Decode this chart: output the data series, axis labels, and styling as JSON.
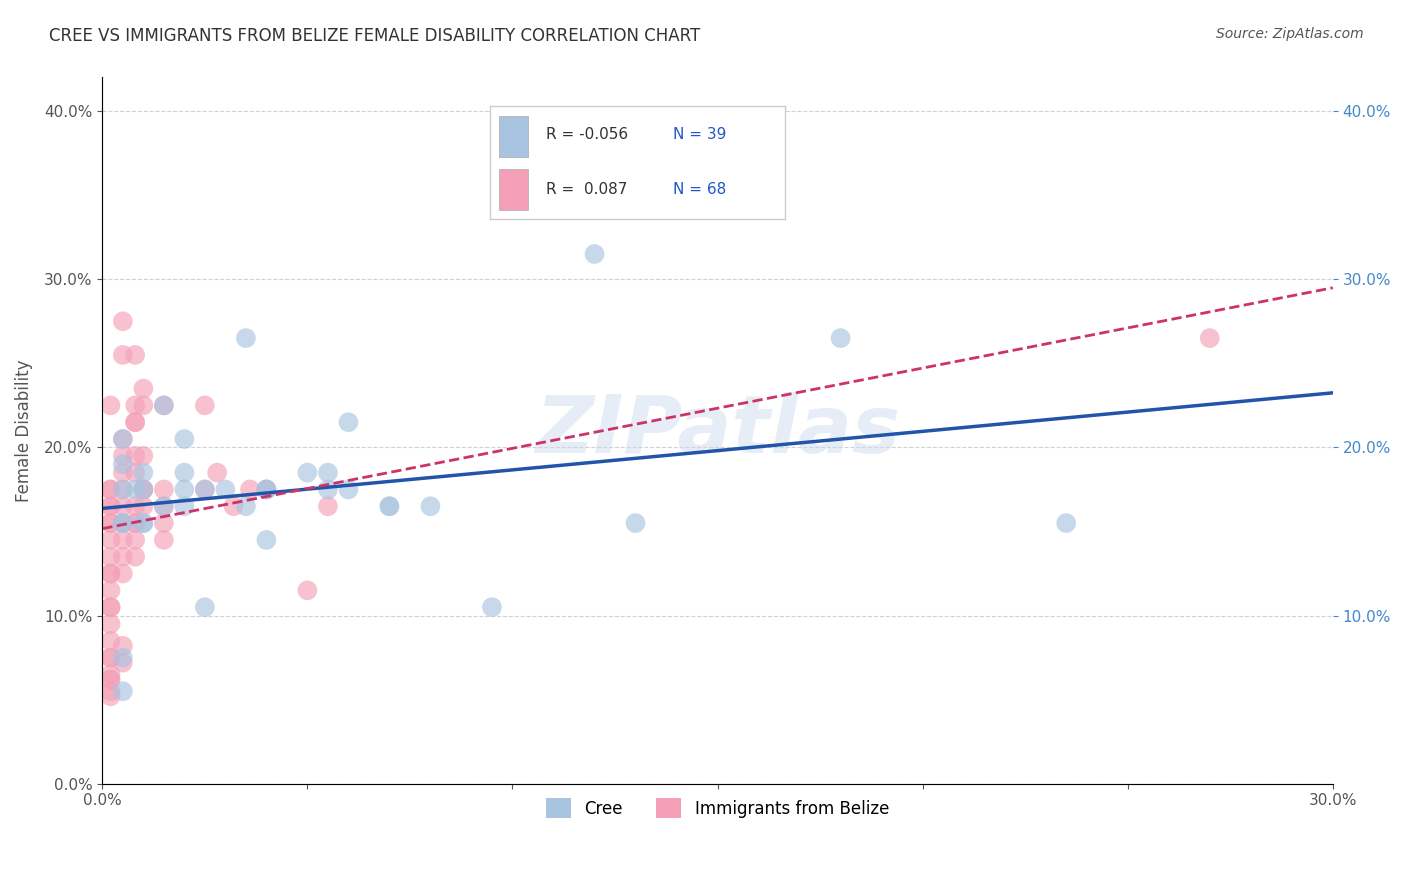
{
  "title": "CREE VS IMMIGRANTS FROM BELIZE FEMALE DISABILITY CORRELATION CHART",
  "source": "Source: ZipAtlas.com",
  "ylabel": "Female Disability",
  "legend_label1": "Cree",
  "legend_label2": "Immigrants from Belize",
  "R1": "-0.056",
  "N1": "39",
  "R2": "0.087",
  "N2": "68",
  "xmin": 0.0,
  "xmax": 0.3,
  "ymin": 0.0,
  "ymax": 0.42,
  "cree_color": "#a8c4e0",
  "belize_color": "#f4a0b8",
  "cree_line_color": "#2255aa",
  "belize_line_color": "#cc3366",
  "bg_color": "#ffffff",
  "grid_color": "#cccccc",
  "cree_x": [
    0.008,
    0.015,
    0.025,
    0.035,
    0.005,
    0.01,
    0.02,
    0.055,
    0.04,
    0.005,
    0.01,
    0.015,
    0.025,
    0.035,
    0.05,
    0.06,
    0.005,
    0.01,
    0.04,
    0.02,
    0.01,
    0.055,
    0.12,
    0.005,
    0.02,
    0.06,
    0.07,
    0.08,
    0.18,
    0.005,
    0.03,
    0.13,
    0.235,
    0.02,
    0.095,
    0.005,
    0.07,
    0.005,
    0.04
  ],
  "cree_y": [
    0.175,
    0.225,
    0.105,
    0.265,
    0.205,
    0.185,
    0.205,
    0.185,
    0.175,
    0.19,
    0.155,
    0.165,
    0.175,
    0.165,
    0.185,
    0.215,
    0.075,
    0.155,
    0.175,
    0.185,
    0.175,
    0.175,
    0.315,
    0.155,
    0.165,
    0.175,
    0.165,
    0.165,
    0.265,
    0.055,
    0.175,
    0.155,
    0.155,
    0.175,
    0.105,
    0.175,
    0.165,
    0.155,
    0.145
  ],
  "belize_x": [
    0.005,
    0.005,
    0.008,
    0.008,
    0.01,
    0.002,
    0.005,
    0.005,
    0.002,
    0.002,
    0.002,
    0.002,
    0.005,
    0.002,
    0.002,
    0.005,
    0.008,
    0.01,
    0.015,
    0.008,
    0.008,
    0.008,
    0.01,
    0.01,
    0.015,
    0.025,
    0.025,
    0.028,
    0.032,
    0.036,
    0.04,
    0.002,
    0.002,
    0.002,
    0.002,
    0.002,
    0.002,
    0.002,
    0.002,
    0.005,
    0.005,
    0.005,
    0.005,
    0.005,
    0.005,
    0.008,
    0.008,
    0.008,
    0.008,
    0.01,
    0.01,
    0.015,
    0.05,
    0.055,
    0.002,
    0.002,
    0.002,
    0.002,
    0.002,
    0.005,
    0.005,
    0.008,
    0.015,
    0.015,
    0.002,
    0.002,
    0.002,
    0.27
  ],
  "belize_y": [
    0.255,
    0.275,
    0.255,
    0.225,
    0.225,
    0.225,
    0.205,
    0.195,
    0.175,
    0.175,
    0.165,
    0.155,
    0.175,
    0.165,
    0.155,
    0.185,
    0.215,
    0.235,
    0.225,
    0.215,
    0.195,
    0.185,
    0.175,
    0.195,
    0.165,
    0.175,
    0.225,
    0.185,
    0.165,
    0.175,
    0.175,
    0.145,
    0.135,
    0.125,
    0.125,
    0.115,
    0.105,
    0.105,
    0.095,
    0.165,
    0.155,
    0.155,
    0.145,
    0.135,
    0.125,
    0.165,
    0.155,
    0.145,
    0.135,
    0.175,
    0.165,
    0.175,
    0.115,
    0.165,
    0.085,
    0.075,
    0.075,
    0.065,
    0.062,
    0.082,
    0.072,
    0.155,
    0.145,
    0.155,
    0.062,
    0.055,
    0.052,
    0.265
  ]
}
